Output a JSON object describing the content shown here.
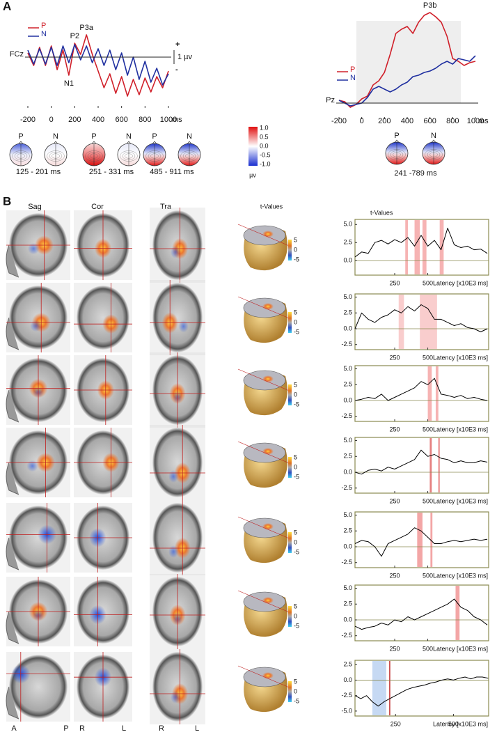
{
  "panels": {
    "a": "A",
    "b": "B"
  },
  "topomaps": {
    "left": [
      {
        "labels": [
          "P",
          "N"
        ],
        "window": "125 - 201 ms"
      },
      {
        "labels": [
          "P",
          "N"
        ],
        "window": "251 - 331 ms"
      },
      {
        "labels": [
          "P",
          "N"
        ],
        "window": "485 - 911 ms"
      }
    ],
    "right": [
      {
        "labels": [
          "P",
          "N"
        ],
        "window": "241 -789 ms"
      }
    ]
  },
  "topo_colorbar": {
    "ticks": [
      "1.0",
      "0.5",
      "0.0",
      "-0.5",
      "-1.0"
    ],
    "unit": "µv"
  },
  "columns": [
    "Sag",
    "Cor",
    "Tra",
    "t-Values"
  ],
  "head_colorbar_ticks": [
    "5",
    "0",
    "-5"
  ],
  "orientation_labels": [
    "A",
    "P",
    "R",
    "L",
    "R",
    "L"
  ],
  "chart_data": [
    {
      "type": "line",
      "channel": "FCz",
      "x": [
        -200,
        -150,
        -100,
        -50,
        0,
        50,
        100,
        150,
        200,
        250,
        300,
        350,
        400,
        450,
        500,
        550,
        600,
        650,
        700,
        750,
        800,
        850,
        900,
        950,
        1000
      ],
      "series": [
        {
          "name": "P",
          "color": "#d0202a",
          "values": [
            0.3,
            -0.6,
            0.7,
            -0.6,
            0.8,
            -0.9,
            0.5,
            -1.3,
            1.0,
            0.2,
            1.6,
            0.2,
            -1.0,
            -2.2,
            -1.2,
            -2.6,
            -1.4,
            -2.8,
            -1.6,
            -2.7,
            -1.5,
            -2.5,
            -1.4,
            -2.2,
            -1.0
          ]
        },
        {
          "name": "N",
          "color": "#2030a0",
          "values": [
            0.5,
            -0.5,
            0.6,
            -0.5,
            0.7,
            -0.6,
            0.8,
            -0.4,
            0.9,
            -0.2,
            0.8,
            -0.4,
            0.6,
            -0.6,
            0.5,
            -0.9,
            0.3,
            -1.3,
            0.0,
            -1.6,
            -0.3,
            -1.8,
            -0.8,
            -2.0,
            -1.2
          ]
        }
      ],
      "xlim": [
        -200,
        1000
      ],
      "ylim": [
        -3.5,
        2.5
      ],
      "xticks": [
        -200,
        0,
        200,
        400,
        600,
        800,
        1000
      ],
      "xlabel": "ms",
      "scale_bar": {
        "label": "1 µv",
        "value": 1
      },
      "polarity": [
        "+",
        "-"
      ],
      "annotations": [
        {
          "text": "N1",
          "x": 150
        },
        {
          "text": "P2",
          "x": 200
        },
        {
          "text": "P3a",
          "x": 300
        }
      ]
    },
    {
      "type": "line",
      "channel": "Pz",
      "x": [
        -200,
        -150,
        -100,
        -50,
        0,
        50,
        100,
        150,
        200,
        250,
        300,
        350,
        400,
        450,
        500,
        550,
        600,
        650,
        700,
        750,
        800,
        850,
        900,
        950,
        1000
      ],
      "series": [
        {
          "name": "P",
          "color": "#d0202a",
          "values": [
            0.2,
            0.1,
            -0.3,
            -0.1,
            0.3,
            0.5,
            1.3,
            1.6,
            2.2,
            3.5,
            5.0,
            5.3,
            5.5,
            5.0,
            5.8,
            6.3,
            6.5,
            6.2,
            5.8,
            4.8,
            3.2,
            3.0,
            2.7,
            2.9,
            3.0
          ]
        },
        {
          "name": "N",
          "color": "#2030a0",
          "values": [
            0.2,
            0.0,
            -0.2,
            -0.1,
            0.0,
            0.4,
            1.0,
            1.2,
            1.0,
            0.8,
            1.0,
            1.3,
            1.5,
            1.9,
            2.0,
            2.2,
            2.3,
            2.5,
            2.8,
            3.0,
            2.8,
            3.2,
            3.1,
            3.0,
            3.4
          ]
        }
      ],
      "xlim": [
        -200,
        1000
      ],
      "ylim": [
        -1,
        6.8
      ],
      "xticks": [
        -200,
        0,
        200,
        400,
        600,
        800,
        1000
      ],
      "xlabel": "ms",
      "annotations": [
        {
          "text": "P3b",
          "x": 600
        }
      ]
    },
    {
      "type": "line",
      "title": "t-Values",
      "x": [
        -50,
        0,
        50,
        100,
        150,
        200,
        250,
        300,
        350,
        400,
        450,
        500,
        550,
        600,
        650,
        700,
        750,
        800,
        850,
        900,
        950
      ],
      "values": [
        0.5,
        1.2,
        1.0,
        2.5,
        2.8,
        2.3,
        2.9,
        2.5,
        3.2,
        2.0,
        3.5,
        2.0,
        2.8,
        1.5,
        4.5,
        2.2,
        1.8,
        2.0,
        1.5,
        1.6,
        1.0
      ],
      "color": "#000000",
      "xlim": [
        -50,
        960
      ],
      "ylim": [
        -2,
        5.7
      ],
      "yticks": [
        {
          "value": 5,
          "label": "5.0"
        },
        {
          "value": 2.5,
          "label": "2.5"
        },
        {
          "value": 0,
          "label": "0.0"
        }
      ],
      "xticks": [
        250,
        500
      ],
      "xlabel": "Latency [x10E3 ms]",
      "bands": [
        [
          330,
          350
        ],
        [
          400,
          440
        ],
        [
          460,
          490
        ],
        [
          590,
          620
        ]
      ],
      "band_color": "#f4a0a0"
    },
    {
      "type": "line",
      "x": [
        -50,
        0,
        50,
        100,
        150,
        200,
        250,
        300,
        350,
        400,
        450,
        500,
        550,
        600,
        650,
        700,
        750,
        800,
        850,
        900,
        950
      ],
      "values": [
        0.0,
        2.5,
        1.5,
        1.0,
        1.8,
        2.2,
        3.0,
        2.5,
        3.5,
        2.8,
        3.8,
        3.2,
        1.5,
        1.5,
        1.0,
        0.5,
        0.8,
        0.2,
        0.0,
        -0.5,
        0.0
      ],
      "color": "#000000",
      "xlim": [
        -50,
        960
      ],
      "ylim": [
        -3.3,
        5.5
      ],
      "yticks": [
        {
          "value": 5,
          "label": "5.0"
        },
        {
          "value": 2.5,
          "label": "2.5"
        },
        {
          "value": 0,
          "label": "0.0"
        },
        {
          "value": -2.5,
          "label": "-2.5"
        }
      ],
      "xticks": [
        250,
        500
      ],
      "xlabel": "Latency [x10E3 ms]",
      "bands": [
        [
          280,
          320
        ],
        [
          440,
          570
        ]
      ],
      "band_color": "#f8c0c0"
    },
    {
      "type": "line",
      "x": [
        -50,
        0,
        50,
        100,
        150,
        200,
        250,
        300,
        350,
        400,
        450,
        500,
        550,
        600,
        650,
        700,
        750,
        800,
        850,
        900,
        950
      ],
      "values": [
        0.0,
        0.2,
        0.5,
        0.3,
        1.0,
        0.0,
        0.5,
        1.0,
        1.5,
        2.0,
        3.0,
        2.5,
        3.5,
        1.0,
        0.8,
        0.5,
        0.8,
        0.3,
        0.5,
        0.2,
        0.0
      ],
      "color": "#000000",
      "xlim": [
        -50,
        960
      ],
      "ylim": [
        -3.3,
        5.5
      ],
      "yticks": [
        {
          "value": 5,
          "label": "5.0"
        },
        {
          "value": 2.5,
          "label": "2.5"
        },
        {
          "value": 0,
          "label": "0.0"
        },
        {
          "value": -2.5,
          "label": "-2.5"
        }
      ],
      "xticks": [
        250,
        500
      ],
      "xlabel": "Latency [x10E3 ms]",
      "bands": [
        [
          500,
          530
        ],
        [
          560,
          580
        ]
      ],
      "band_color": "#f4a0a0"
    },
    {
      "type": "line",
      "x": [
        -50,
        0,
        50,
        100,
        150,
        200,
        250,
        300,
        350,
        400,
        450,
        500,
        550,
        600,
        650,
        700,
        750,
        800,
        850,
        900,
        950
      ],
      "values": [
        0.0,
        -0.3,
        0.3,
        0.5,
        0.2,
        0.8,
        0.5,
        1.0,
        1.5,
        2.0,
        3.5,
        2.5,
        2.8,
        2.2,
        2.0,
        1.5,
        1.8,
        1.5,
        1.5,
        1.8,
        1.6
      ],
      "color": "#000000",
      "xlim": [
        -50,
        960
      ],
      "ylim": [
        -3.3,
        5.5
      ],
      "yticks": [
        {
          "value": 5,
          "label": "5.0"
        },
        {
          "value": 2.5,
          "label": "2.5"
        },
        {
          "value": 0,
          "label": "0.0"
        },
        {
          "value": -2.5,
          "label": "-2.5"
        }
      ],
      "xticks": [
        250,
        500
      ],
      "xlabel": "Latency [x10E3 ms]",
      "bands": [
        [
          515,
          530
        ],
        [
          580,
          590
        ]
      ],
      "band_color": "#e06060"
    },
    {
      "type": "line",
      "x": [
        -50,
        0,
        50,
        100,
        150,
        200,
        250,
        300,
        350,
        400,
        450,
        500,
        550,
        600,
        650,
        700,
        750,
        800,
        850,
        900,
        950
      ],
      "values": [
        0.5,
        1.0,
        0.8,
        0.0,
        -1.5,
        0.5,
        1.0,
        1.5,
        2.0,
        3.0,
        2.5,
        1.5,
        0.5,
        0.5,
        0.8,
        1.0,
        0.8,
        1.0,
        1.2,
        1.0,
        1.2
      ],
      "color": "#000000",
      "xlim": [
        -50,
        960
      ],
      "ylim": [
        -3.3,
        5.5
      ],
      "yticks": [
        {
          "value": 5,
          "label": "5.0"
        },
        {
          "value": 2.5,
          "label": "2.5"
        },
        {
          "value": 0,
          "label": "0.0"
        },
        {
          "value": -2.5,
          "label": "-2.5"
        }
      ],
      "xticks": [
        250,
        500
      ],
      "xlabel": "Latency [x10E3 ms]",
      "bands": [
        [
          420,
          460
        ],
        [
          520,
          535
        ]
      ],
      "band_color": "#f09090"
    },
    {
      "type": "line",
      "x": [
        -50,
        0,
        50,
        100,
        150,
        200,
        250,
        300,
        350,
        400,
        450,
        500,
        550,
        600,
        650,
        700,
        750,
        800,
        850,
        900,
        950
      ],
      "values": [
        -1.0,
        -1.5,
        -1.2,
        -1.0,
        -0.5,
        -0.8,
        0.0,
        -0.3,
        0.5,
        0.0,
        0.5,
        1.0,
        1.5,
        2.0,
        2.5,
        3.3,
        2.0,
        1.5,
        0.5,
        0.0,
        -0.8
      ],
      "color": "#000000",
      "xlim": [
        -50,
        960
      ],
      "ylim": [
        -3.3,
        5.5
      ],
      "yticks": [
        {
          "value": 5,
          "label": "5.0"
        },
        {
          "value": 2.5,
          "label": "2.5"
        },
        {
          "value": 0,
          "label": "0.0"
        },
        {
          "value": -2.5,
          "label": "-2.5"
        }
      ],
      "xticks": [
        250,
        500
      ],
      "xlabel": "Latency [x10E3 ms]",
      "bands": [
        [
          710,
          740
        ]
      ],
      "band_color": "#f09090"
    },
    {
      "type": "line",
      "x": [
        75,
        100,
        125,
        150,
        175,
        200,
        225,
        250,
        275,
        300,
        325,
        350,
        375,
        400,
        425,
        450,
        475,
        500,
        525,
        550,
        575,
        600,
        625,
        650
      ],
      "values": [
        -2.5,
        -3.0,
        -2.5,
        -3.5,
        -4.2,
        -3.5,
        -3.0,
        -2.5,
        -2.0,
        -1.5,
        -1.2,
        -1.0,
        -0.8,
        -0.5,
        -0.3,
        0.0,
        0.2,
        0.0,
        0.3,
        0.5,
        0.2,
        0.5,
        0.5,
        0.3
      ],
      "color": "#000000",
      "xlim": [
        75,
        652
      ],
      "ylim": [
        -5.8,
        3.2
      ],
      "yticks": [
        {
          "value": 2.5,
          "label": "2.5"
        },
        {
          "value": 0,
          "label": "0.0"
        },
        {
          "value": -2.5,
          "label": "-2.5"
        },
        {
          "value": -5,
          "label": "-5.0"
        }
      ],
      "xticks": [
        250,
        500
      ],
      "xlabel": "Latency [x10E3 ms]",
      "bands": [
        [
          150,
          210
        ]
      ],
      "band_color": "#b8d0f0",
      "markers": [
        225
      ],
      "marker_color": "#c03030"
    }
  ]
}
